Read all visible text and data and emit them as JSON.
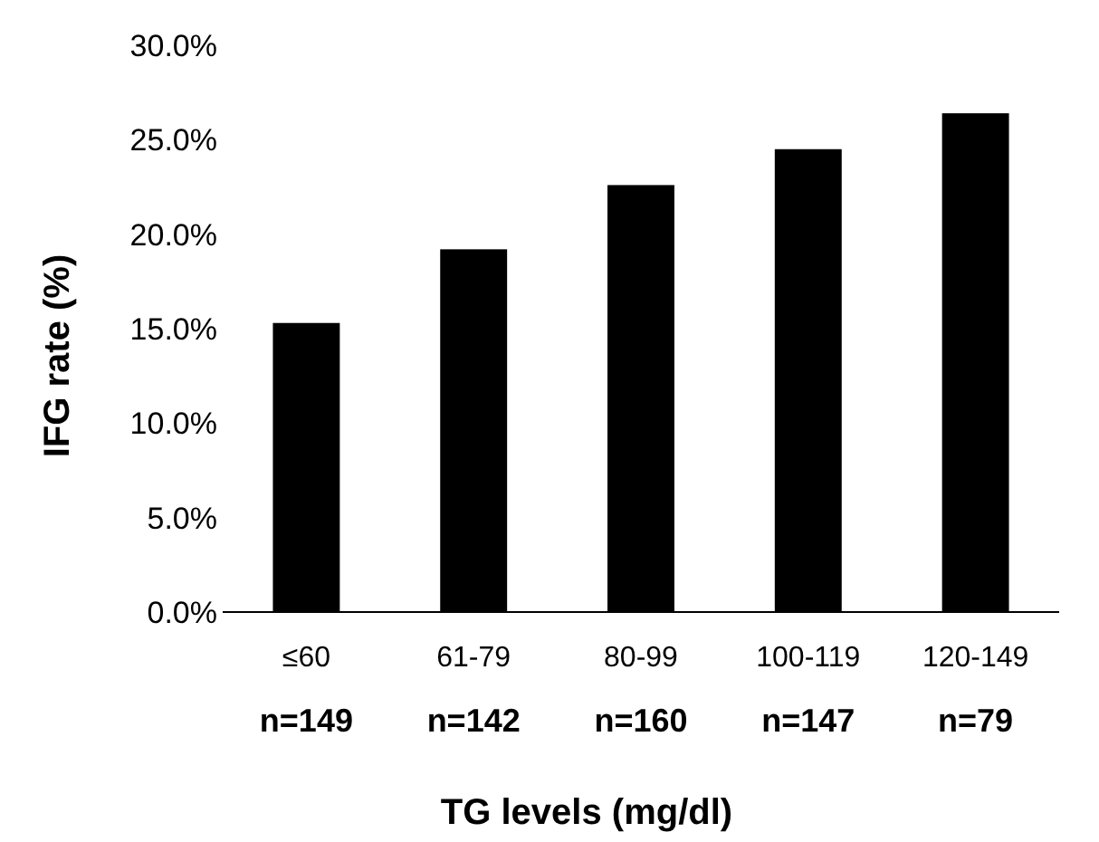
{
  "chart_data": {
    "type": "bar",
    "xlabel": "TG levels (mg/dl)",
    "ylabel": "IFG rate (%)",
    "categories": [
      "≤60",
      "61-79",
      "80-99",
      "100-119",
      "120-149"
    ],
    "values": [
      15.3,
      19.2,
      22.6,
      24.5,
      26.4
    ],
    "color": "#000000",
    "ylim": [
      0,
      30
    ],
    "yticks": [
      {
        "value": 0,
        "label": "0.0%"
      },
      {
        "value": 5,
        "label": "5.0%"
      },
      {
        "value": 10,
        "label": "10.0%"
      },
      {
        "value": 15,
        "label": "15.0%"
      },
      {
        "value": 20,
        "label": "20.0%"
      },
      {
        "value": 25,
        "label": "25.0%"
      },
      {
        "value": 30,
        "label": "30.0%"
      }
    ],
    "grid": false,
    "annotations": [
      "n=149",
      "n=142",
      "n=160",
      "n=147",
      "n=79"
    ]
  }
}
